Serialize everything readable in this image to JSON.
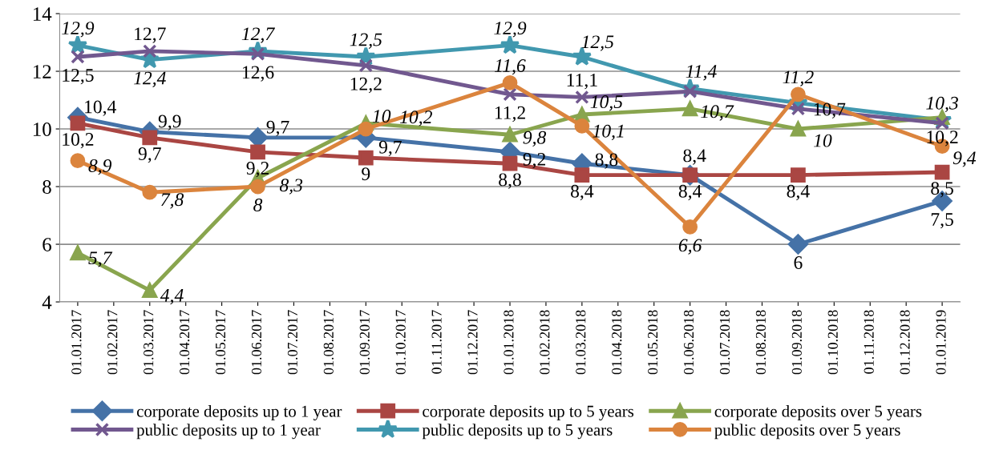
{
  "chart_data": {
    "type": "line",
    "categories": [
      "01.01.2017",
      "01.02.2017",
      "01.03.2017",
      "01.04.2017",
      "01.05.2017",
      "01.06.2017",
      "01.07.2017",
      "01.08.2017",
      "01.09.2017",
      "01.10.2017",
      "01.11.2017",
      "01.12.2017",
      "01.01.2018",
      "01.02.2018",
      "01.03.2018",
      "01.04.2018",
      "01.05.2018",
      "01.06.2018",
      "01.07.2018",
      "01.08.2018",
      "01.09.2018",
      "01.10.2018",
      "01.11.2018",
      "01.12.2018",
      "01.01.2019"
    ],
    "ylim": [
      4,
      14
    ],
    "yticks": [
      4,
      6,
      8,
      10,
      12,
      14
    ],
    "grid": "y",
    "legend": "bottom",
    "series": [
      {
        "name": "corporate deposits up to 1 year",
        "color": "#4572a7",
        "marker": "diamond",
        "x": [
          "01.01.2017",
          "01.03.2017",
          "01.06.2017",
          "01.09.2017",
          "01.01.2018",
          "01.03.2018",
          "01.06.2018",
          "01.09.2018",
          "01.01.2019"
        ],
        "values": [
          10.4,
          9.9,
          9.7,
          9.7,
          9.2,
          8.8,
          8.4,
          6,
          7.5
        ],
        "value_labels": [
          "10,4",
          "9,9",
          "9,7",
          "9,7",
          "9,2",
          "8,8",
          "8,4",
          "6",
          "7,5"
        ]
      },
      {
        "name": "corporate deposits up to 5 years",
        "color": "#aa4643",
        "marker": "square",
        "x": [
          "01.01.2017",
          "01.03.2017",
          "01.06.2017",
          "01.09.2017",
          "01.01.2018",
          "01.03.2018",
          "01.06.2018",
          "01.09.2018",
          "01.01.2019"
        ],
        "values": [
          10.2,
          9.7,
          9.2,
          9,
          8.8,
          8.4,
          8.4,
          8.4,
          8.5
        ],
        "value_labels": [
          "10,2",
          "9,7",
          "9,2",
          "9",
          "8,8",
          "8,4",
          "8,4",
          "8,4",
          "8,5"
        ]
      },
      {
        "name": "corporate deposits over 5 years",
        "color": "#89a54e",
        "marker": "triangle",
        "x": [
          "01.01.2017",
          "01.03.2017",
          "01.06.2017",
          "01.09.2017",
          "01.01.2018",
          "01.03.2018",
          "01.06.2018",
          "01.09.2018",
          "01.01.2019"
        ],
        "values": [
          5.7,
          4.4,
          8.3,
          10.2,
          9.8,
          10.5,
          10.7,
          10,
          10.4
        ],
        "value_labels": [
          "5,7",
          "4,4",
          "8,3",
          "10,2",
          "9,8",
          "10,5",
          "10,7",
          "10",
          null
        ]
      },
      {
        "name": "public deposits up to 1 year",
        "color": "#71588f",
        "marker": "cross",
        "x": [
          "01.01.2017",
          "01.03.2017",
          "01.06.2017",
          "01.09.2017",
          "01.01.2018",
          "01.03.2018",
          "01.06.2018",
          "01.09.2018",
          "01.01.2019"
        ],
        "values": [
          12.5,
          12.7,
          12.6,
          12.2,
          11.2,
          11.1,
          11.3,
          10.7,
          10.2
        ],
        "value_labels": [
          "12,5",
          "12,7",
          "12,6",
          "12,2",
          "11,2",
          "11,1",
          null,
          "10,7",
          "10,2"
        ]
      },
      {
        "name": "public deposits up to 5 years",
        "color": "#4198af",
        "marker": "star",
        "x": [
          "01.01.2017",
          "01.03.2017",
          "01.06.2017",
          "01.09.2017",
          "01.01.2018",
          "01.03.2018",
          "01.06.2018",
          "01.09.2018",
          "01.01.2019"
        ],
        "values": [
          12.9,
          12.4,
          12.7,
          12.5,
          12.9,
          12.5,
          11.4,
          10.9,
          10.3
        ],
        "value_labels": [
          "12,9",
          "12,4",
          "12,7",
          "12,5",
          "12,9",
          "12,5",
          "11,4",
          null,
          "10,3"
        ]
      },
      {
        "name": "public deposits over 5 years",
        "color": "#db843d",
        "marker": "circle",
        "x": [
          "01.01.2017",
          "01.03.2017",
          "01.06.2017",
          "01.09.2017",
          "01.01.2018",
          "01.03.2018",
          "01.06.2018",
          "01.09.2018",
          "01.01.2019"
        ],
        "values": [
          8.9,
          7.8,
          8,
          10,
          11.6,
          10.1,
          6.6,
          11.2,
          9.4
        ],
        "value_labels": [
          "8,9",
          "7,8",
          "8",
          "10",
          "11,6",
          "10,1",
          "6,6",
          "11,2",
          "9,4"
        ]
      }
    ]
  }
}
